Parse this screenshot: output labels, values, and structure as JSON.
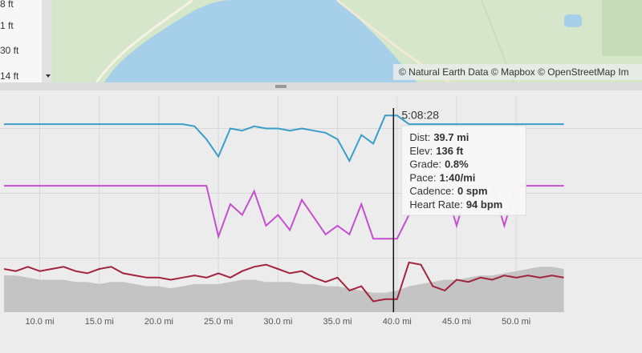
{
  "map": {
    "scale_labels": [
      "8 ft",
      "1 ft",
      "30 ft",
      "14 ft"
    ],
    "attribution": "© Natural Earth Data © Mapbox © OpenStreetMap Im"
  },
  "chart_data": {
    "type": "line",
    "x": [
      7,
      8,
      9,
      10,
      11,
      12,
      13,
      14,
      15,
      16,
      17,
      18,
      19,
      20,
      21,
      22,
      23,
      24,
      25,
      26,
      27,
      28,
      29,
      30,
      31,
      32,
      33,
      34,
      35,
      36,
      37,
      38,
      39,
      40,
      41,
      42,
      43,
      44,
      45,
      46,
      47,
      48,
      49,
      50,
      51,
      52,
      53,
      54
    ],
    "xlim": [
      7,
      54.5
    ],
    "ylim": [
      0,
      100
    ],
    "xticks": [
      {
        "value": 10,
        "label": "10.0 mi"
      },
      {
        "value": 15,
        "label": "15.0 mi"
      },
      {
        "value": 20,
        "label": "20.0 mi"
      },
      {
        "value": 25,
        "label": "25.0 mi"
      },
      {
        "value": 30,
        "label": "30.0 mi"
      },
      {
        "value": 35,
        "label": "35.0 mi"
      },
      {
        "value": 40,
        "label": "40.0 mi"
      },
      {
        "value": 45,
        "label": "45.0 mi"
      },
      {
        "value": 50,
        "label": "50.0 mi"
      }
    ],
    "grid": true,
    "series": [
      {
        "color": "#3a9ec9",
        "values": [
          87,
          87,
          87,
          87,
          87,
          87,
          87,
          87,
          87,
          87,
          87,
          87,
          87,
          87,
          87,
          87,
          86,
          80,
          72,
          85,
          84,
          86,
          85,
          85,
          84,
          85,
          84,
          83,
          80,
          70,
          82,
          78,
          91,
          91,
          87,
          87,
          87,
          87,
          87,
          87,
          87,
          87,
          87,
          87,
          87,
          87,
          87,
          87
        ]
      },
      {
        "color": "#c44fd0",
        "values": [
          58.5,
          58.5,
          58.5,
          58.5,
          58.5,
          58.5,
          58.5,
          58.5,
          58.5,
          58.5,
          58.5,
          58.5,
          58.5,
          58.5,
          58.5,
          58.5,
          58.5,
          58.5,
          35,
          50,
          45,
          56,
          40,
          45,
          38,
          52,
          44,
          36,
          40,
          36,
          50,
          34,
          34,
          34,
          45,
          58.5,
          50,
          58.5,
          40,
          58.5,
          58.5,
          58.5,
          40,
          58.5,
          58.5,
          58.5,
          58.5,
          58.5
        ]
      },
      {
        "color": "#a3233f",
        "values": [
          20,
          19,
          21,
          19,
          20,
          21,
          19,
          18,
          20,
          21,
          18,
          17,
          16,
          16,
          15,
          16,
          17,
          16,
          18,
          16,
          19,
          21,
          22,
          20,
          18,
          19,
          16,
          14,
          16,
          10,
          12,
          5,
          6,
          6,
          23,
          22,
          12,
          10,
          15,
          14,
          16,
          15,
          17,
          16,
          17,
          16,
          17,
          16
        ]
      },
      {
        "color": "#c4c4c4",
        "area": true,
        "values": [
          17,
          17,
          16,
          15,
          15,
          15,
          14,
          14,
          13,
          14,
          14,
          13,
          12,
          12,
          11,
          12,
          13,
          13,
          13,
          14,
          15,
          15,
          14,
          14,
          14,
          13,
          13,
          12,
          12,
          11,
          10,
          9,
          9,
          10,
          12,
          13,
          14,
          15,
          15,
          16,
          17,
          17,
          18,
          19,
          20,
          21,
          21,
          20
        ]
      }
    ],
    "cursor": 39.7,
    "time": "5:08:28",
    "tooltip": [
      {
        "label": "Dist:",
        "value": "39.7 mi"
      },
      {
        "label": "Elev:",
        "value": "136 ft"
      },
      {
        "label": "Grade:",
        "value": "0.8%"
      },
      {
        "label": "Pace:",
        "value": "1:40/mi"
      },
      {
        "label": "Cadence:",
        "value": "0 spm"
      },
      {
        "label": "Heart Rate:",
        "value": "94 bpm"
      }
    ]
  }
}
